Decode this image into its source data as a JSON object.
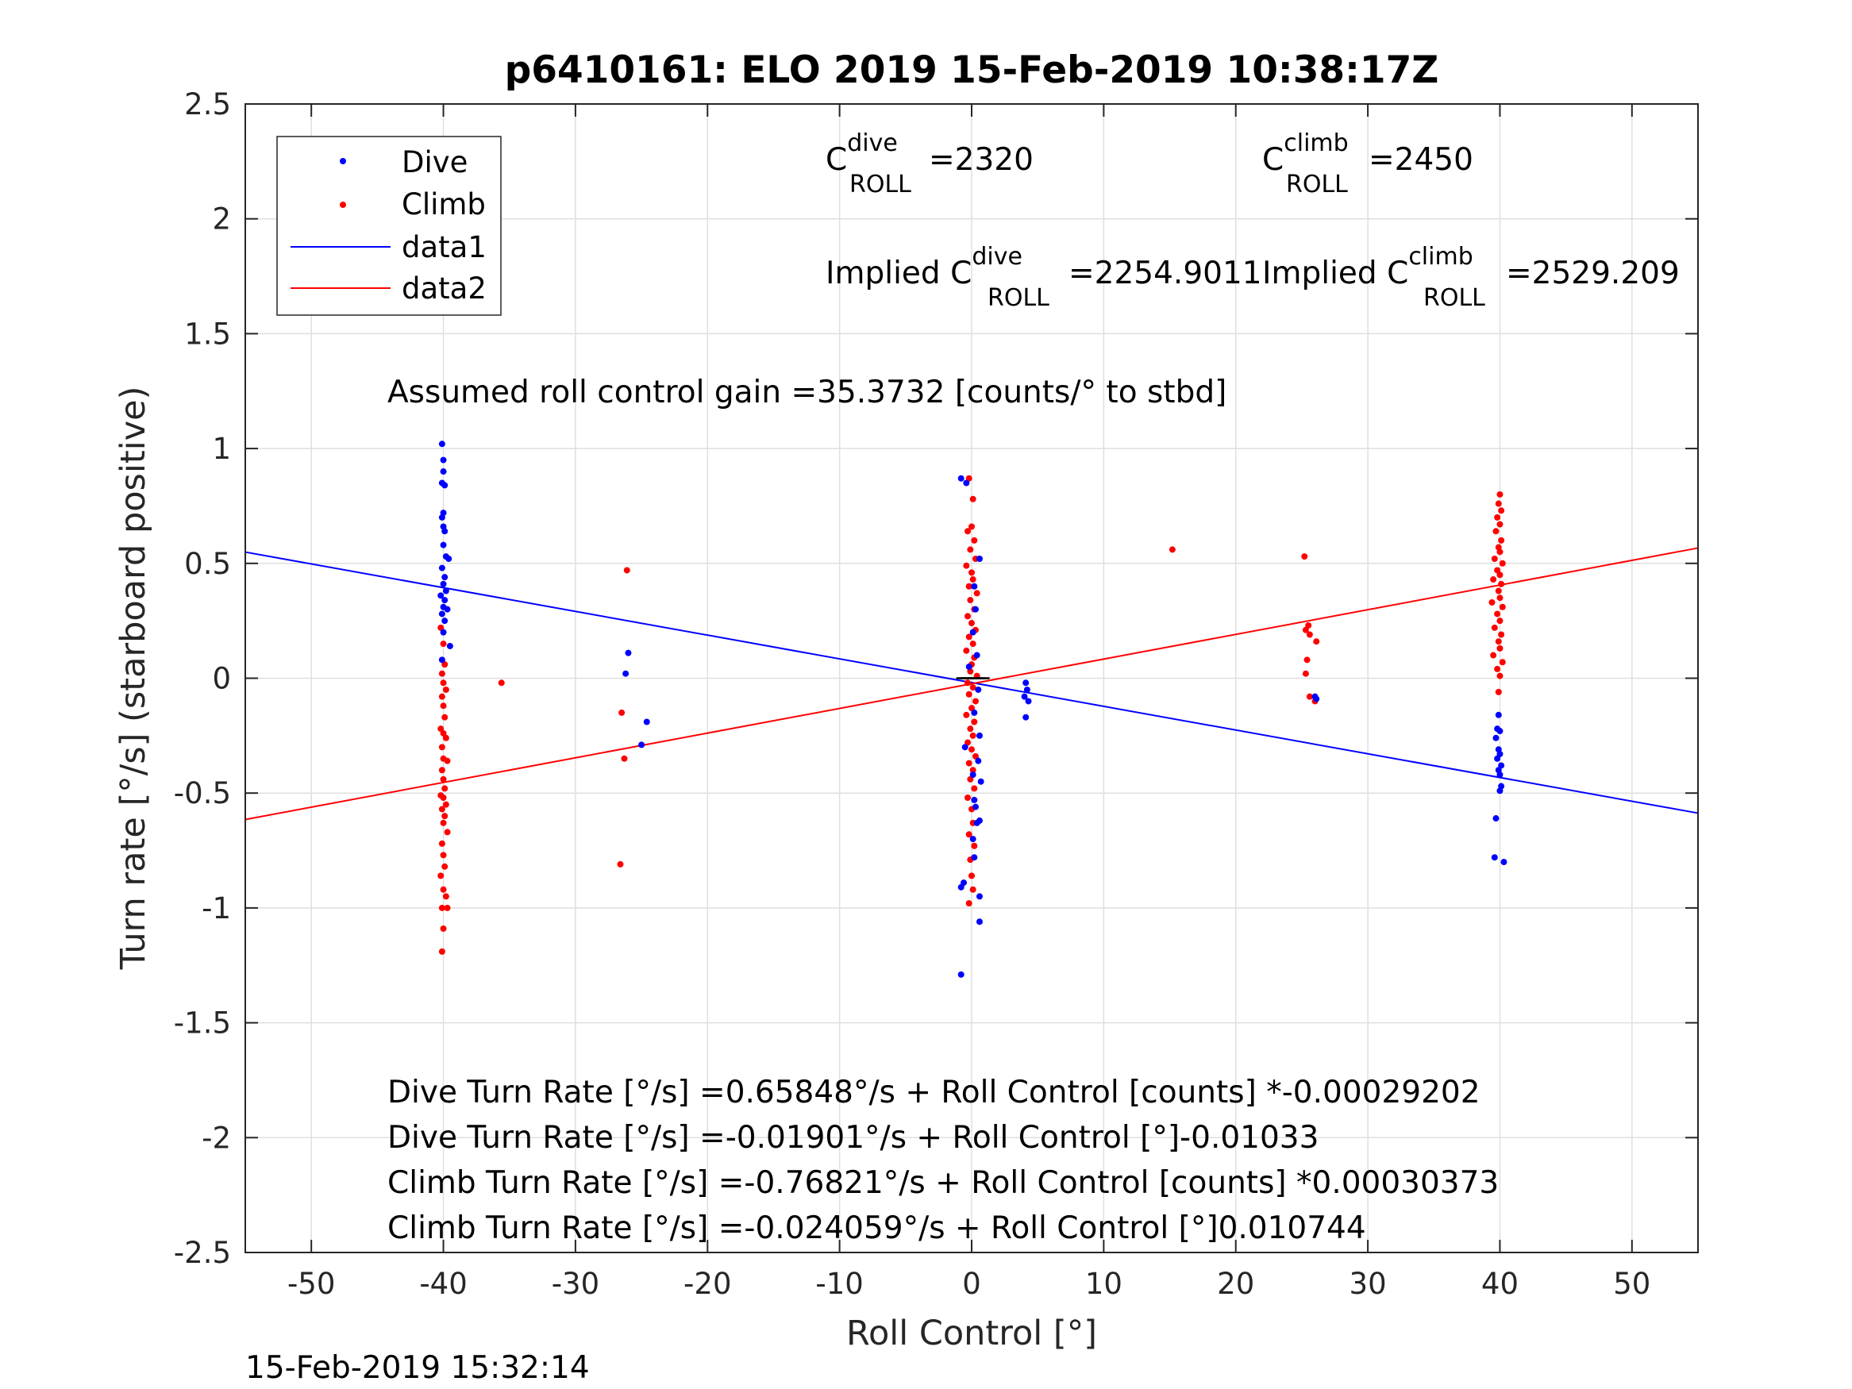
{
  "chart_data": {
    "type": "scatter",
    "title": "p6410161: ELO 2019 15-Feb-2019 10:38:17Z",
    "xlabel": "Roll Control [°]",
    "ylabel": "Turn rate [°/s] (starboard positive)",
    "xlim": [
      -55,
      55
    ],
    "ylim": [
      -2.5,
      2.5
    ],
    "xticks": [
      "-50",
      "-40",
      "-30",
      "-20",
      "-10",
      "0",
      "10",
      "20",
      "30",
      "40",
      "50"
    ],
    "yticks": [
      "-2.5",
      "-2",
      "-1.5",
      "-1",
      "-0.5",
      "0",
      "0.5",
      "1",
      "1.5",
      "2",
      "2.5"
    ],
    "grid": true,
    "legend_position": "top-left",
    "legend": [
      "Dive",
      "Climb",
      "data1",
      "data2"
    ],
    "colors": {
      "dive": "#0000ff",
      "climb": "#ff0000",
      "zero_marks": "#000000",
      "grid": "#dfdfdf",
      "axes": "#262626"
    },
    "series": [
      {
        "name": "Dive",
        "kind": "points",
        "points": [
          [
            -40.1,
            1.02
          ],
          [
            -40.0,
            0.95
          ],
          [
            -40.0,
            0.9
          ],
          [
            -40.1,
            0.85
          ],
          [
            -39.9,
            0.84
          ],
          [
            -40.0,
            0.72
          ],
          [
            -40.1,
            0.7
          ],
          [
            -40.0,
            0.66
          ],
          [
            -39.9,
            0.64
          ],
          [
            -40.0,
            0.58
          ],
          [
            -39.8,
            0.53
          ],
          [
            -39.6,
            0.52
          ],
          [
            -40.1,
            0.48
          ],
          [
            -39.9,
            0.44
          ],
          [
            -40.0,
            0.41
          ],
          [
            -39.8,
            0.38
          ],
          [
            -40.2,
            0.36
          ],
          [
            -39.9,
            0.34
          ],
          [
            -40.0,
            0.31
          ],
          [
            -39.7,
            0.3
          ],
          [
            -40.1,
            0.28
          ],
          [
            -39.9,
            0.25
          ],
          [
            -40.0,
            0.2
          ],
          [
            -39.5,
            0.14
          ],
          [
            -40.1,
            0.08
          ],
          [
            -26.0,
            0.11
          ],
          [
            -26.2,
            0.02
          ],
          [
            -24.6,
            -0.19
          ],
          [
            -25.0,
            -0.29
          ],
          [
            -0.8,
            0.87
          ],
          [
            -0.4,
            0.85
          ],
          [
            0.6,
            0.52
          ],
          [
            0.2,
            0.4
          ],
          [
            0.3,
            0.3
          ],
          [
            0.1,
            0.2
          ],
          [
            0.4,
            0.1
          ],
          [
            -0.2,
            0.05
          ],
          [
            0.5,
            -0.05
          ],
          [
            0.2,
            -0.15
          ],
          [
            0.6,
            -0.25
          ],
          [
            -0.5,
            -0.3
          ],
          [
            0.5,
            -0.36
          ],
          [
            0.1,
            -0.42
          ],
          [
            0.7,
            -0.45
          ],
          [
            0.2,
            -0.53
          ],
          [
            0.3,
            -0.56
          ],
          [
            0.6,
            -0.62
          ],
          [
            0.4,
            -0.63
          ],
          [
            0.1,
            -0.7
          ],
          [
            0.2,
            -0.78
          ],
          [
            -0.6,
            -0.89
          ],
          [
            -0.8,
            -0.91
          ],
          [
            0.6,
            -0.95
          ],
          [
            0.6,
            -1.06
          ],
          [
            -0.8,
            -1.29
          ],
          [
            4.1,
            -0.02
          ],
          [
            4.2,
            -0.05
          ],
          [
            4.0,
            -0.08
          ],
          [
            4.3,
            -0.1
          ],
          [
            4.1,
            -0.17
          ],
          [
            26.0,
            -0.08
          ],
          [
            26.1,
            -0.09
          ],
          [
            39.9,
            -0.16
          ],
          [
            39.8,
            -0.22
          ],
          [
            40.0,
            -0.23
          ],
          [
            39.7,
            -0.26
          ],
          [
            39.9,
            -0.31
          ],
          [
            40.0,
            -0.33
          ],
          [
            39.8,
            -0.35
          ],
          [
            40.1,
            -0.38
          ],
          [
            39.9,
            -0.4
          ],
          [
            40.0,
            -0.42
          ],
          [
            40.1,
            -0.47
          ],
          [
            40.0,
            -0.49
          ],
          [
            39.7,
            -0.61
          ],
          [
            39.6,
            -0.78
          ],
          [
            40.3,
            -0.8
          ]
        ]
      },
      {
        "name": "Climb",
        "kind": "points",
        "points": [
          [
            -40.2,
            0.22
          ],
          [
            -40.0,
            0.15
          ],
          [
            -39.9,
            0.06
          ],
          [
            -40.1,
            0.02
          ],
          [
            -40.0,
            -0.02
          ],
          [
            -39.8,
            -0.05
          ],
          [
            -40.1,
            -0.08
          ],
          [
            -40.0,
            -0.12
          ],
          [
            -39.9,
            -0.17
          ],
          [
            -40.2,
            -0.22
          ],
          [
            -40.0,
            -0.24
          ],
          [
            -39.8,
            -0.26
          ],
          [
            -40.1,
            -0.3
          ],
          [
            -40.0,
            -0.35
          ],
          [
            -39.7,
            -0.36
          ],
          [
            -40.1,
            -0.4
          ],
          [
            -40.0,
            -0.44
          ],
          [
            -39.9,
            -0.48
          ],
          [
            -40.2,
            -0.51
          ],
          [
            -40.0,
            -0.52
          ],
          [
            -39.8,
            -0.55
          ],
          [
            -40.1,
            -0.57
          ],
          [
            -39.9,
            -0.6
          ],
          [
            -40.0,
            -0.63
          ],
          [
            -39.7,
            -0.67
          ],
          [
            -40.1,
            -0.72
          ],
          [
            -40.0,
            -0.77
          ],
          [
            -39.9,
            -0.82
          ],
          [
            -40.2,
            -0.86
          ],
          [
            -40.0,
            -0.92
          ],
          [
            -39.8,
            -0.95
          ],
          [
            -40.1,
            -1.0
          ],
          [
            -39.7,
            -1.0
          ],
          [
            -40.0,
            -1.09
          ],
          [
            -40.1,
            -1.19
          ],
          [
            -35.6,
            -0.02
          ],
          [
            -26.1,
            0.47
          ],
          [
            -26.5,
            -0.15
          ],
          [
            -26.3,
            -0.35
          ],
          [
            -26.6,
            -0.81
          ],
          [
            -0.2,
            0.87
          ],
          [
            0.1,
            0.78
          ],
          [
            0.0,
            0.66
          ],
          [
            -0.3,
            0.64
          ],
          [
            0.2,
            0.6
          ],
          [
            -0.1,
            0.56
          ],
          [
            0.3,
            0.52
          ],
          [
            -0.4,
            0.49
          ],
          [
            0.0,
            0.46
          ],
          [
            0.1,
            0.43
          ],
          [
            -0.2,
            0.4
          ],
          [
            0.4,
            0.37
          ],
          [
            -0.1,
            0.34
          ],
          [
            0.2,
            0.3
          ],
          [
            -0.3,
            0.27
          ],
          [
            0.0,
            0.24
          ],
          [
            0.3,
            0.21
          ],
          [
            -0.2,
            0.18
          ],
          [
            0.1,
            0.15
          ],
          [
            -0.4,
            0.12
          ],
          [
            0.2,
            0.09
          ],
          [
            0.0,
            0.06
          ],
          [
            -0.1,
            0.03
          ],
          [
            0.4,
            0.01
          ],
          [
            -0.3,
            -0.02
          ],
          [
            0.1,
            -0.04
          ],
          [
            -0.2,
            -0.07
          ],
          [
            0.3,
            -0.1
          ],
          [
            0.0,
            -0.13
          ],
          [
            -0.4,
            -0.16
          ],
          [
            0.2,
            -0.19
          ],
          [
            -0.1,
            -0.22
          ],
          [
            0.1,
            -0.25
          ],
          [
            -0.3,
            -0.28
          ],
          [
            0.0,
            -0.31
          ],
          [
            0.3,
            -0.34
          ],
          [
            -0.2,
            -0.37
          ],
          [
            0.1,
            -0.4
          ],
          [
            -0.1,
            -0.44
          ],
          [
            0.2,
            -0.48
          ],
          [
            -0.3,
            -0.52
          ],
          [
            0.0,
            -0.57
          ],
          [
            0.1,
            -0.63
          ],
          [
            -0.2,
            -0.68
          ],
          [
            0.2,
            -0.73
          ],
          [
            -0.1,
            -0.79
          ],
          [
            0.0,
            -0.86
          ],
          [
            0.1,
            -0.92
          ],
          [
            -0.2,
            -0.98
          ],
          [
            15.2,
            0.56
          ],
          [
            25.2,
            0.53
          ],
          [
            25.5,
            0.23
          ],
          [
            25.3,
            0.21
          ],
          [
            25.6,
            0.19
          ],
          [
            26.1,
            0.16
          ],
          [
            25.4,
            0.08
          ],
          [
            25.3,
            0.02
          ],
          [
            25.6,
            -0.08
          ],
          [
            26.0,
            -0.1
          ],
          [
            40.0,
            0.8
          ],
          [
            39.9,
            0.76
          ],
          [
            40.1,
            0.73
          ],
          [
            39.8,
            0.7
          ],
          [
            40.0,
            0.67
          ],
          [
            39.7,
            0.64
          ],
          [
            40.1,
            0.6
          ],
          [
            39.9,
            0.57
          ],
          [
            40.0,
            0.55
          ],
          [
            39.6,
            0.52
          ],
          [
            40.2,
            0.5
          ],
          [
            39.8,
            0.47
          ],
          [
            40.0,
            0.45
          ],
          [
            39.5,
            0.43
          ],
          [
            40.1,
            0.41
          ],
          [
            39.9,
            0.38
          ],
          [
            40.0,
            0.35
          ],
          [
            39.4,
            0.33
          ],
          [
            40.2,
            0.31
          ],
          [
            39.8,
            0.28
          ],
          [
            40.0,
            0.25
          ],
          [
            39.6,
            0.22
          ],
          [
            40.1,
            0.19
          ],
          [
            39.9,
            0.16
          ],
          [
            40.0,
            0.13
          ],
          [
            39.5,
            0.1
          ],
          [
            40.2,
            0.07
          ],
          [
            39.8,
            0.04
          ],
          [
            40.0,
            0.01
          ],
          [
            39.9,
            -0.06
          ]
        ]
      },
      {
        "name": "data1",
        "kind": "line",
        "x": [
          -55,
          55
        ],
        "y": [
          0.5492,
          -0.5872
        ]
      },
      {
        "name": "data2",
        "kind": "line",
        "x": [
          -55,
          55
        ],
        "y": [
          -0.615,
          0.5669
        ]
      }
    ],
    "zero_marks": [
      -0.8,
      -0.5,
      -0.2,
      0.1,
      0.4,
      0.7,
      1.0
    ]
  },
  "annotations": {
    "c_roll_dive": {
      "base": "C",
      "sup": "dive",
      "sub": "ROLL",
      "value": "=2320"
    },
    "c_roll_climb": {
      "base": "C",
      "sup": "climb",
      "sub": "ROLL",
      "value": "=2450"
    },
    "implied_dive": {
      "prefix": "Implied C",
      "sup": "dive",
      "sub": "ROLL",
      "value": "=2254.9011"
    },
    "implied_climb": {
      "prefix": "Implied C",
      "sup": "climb",
      "sub": "ROLL",
      "value": "=2529.209"
    },
    "gain": "Assumed roll control gain =35.3732 [counts/° to stbd]",
    "eq_dive_counts": "Dive Turn Rate [°/s] =0.65848°/s + Roll Control [counts] *-0.00029202",
    "eq_dive_deg": "Dive Turn Rate [°/s] =-0.01901°/s + Roll Control [°]-0.01033",
    "eq_climb_counts": "Climb Turn Rate [°/s] =-0.76821°/s + Roll Control [counts] *0.00030373",
    "eq_climb_deg": "Climb Turn Rate [°/s] =-0.024059°/s + Roll Control [°]0.010744"
  },
  "timestamp": "15-Feb-2019 15:32:14"
}
